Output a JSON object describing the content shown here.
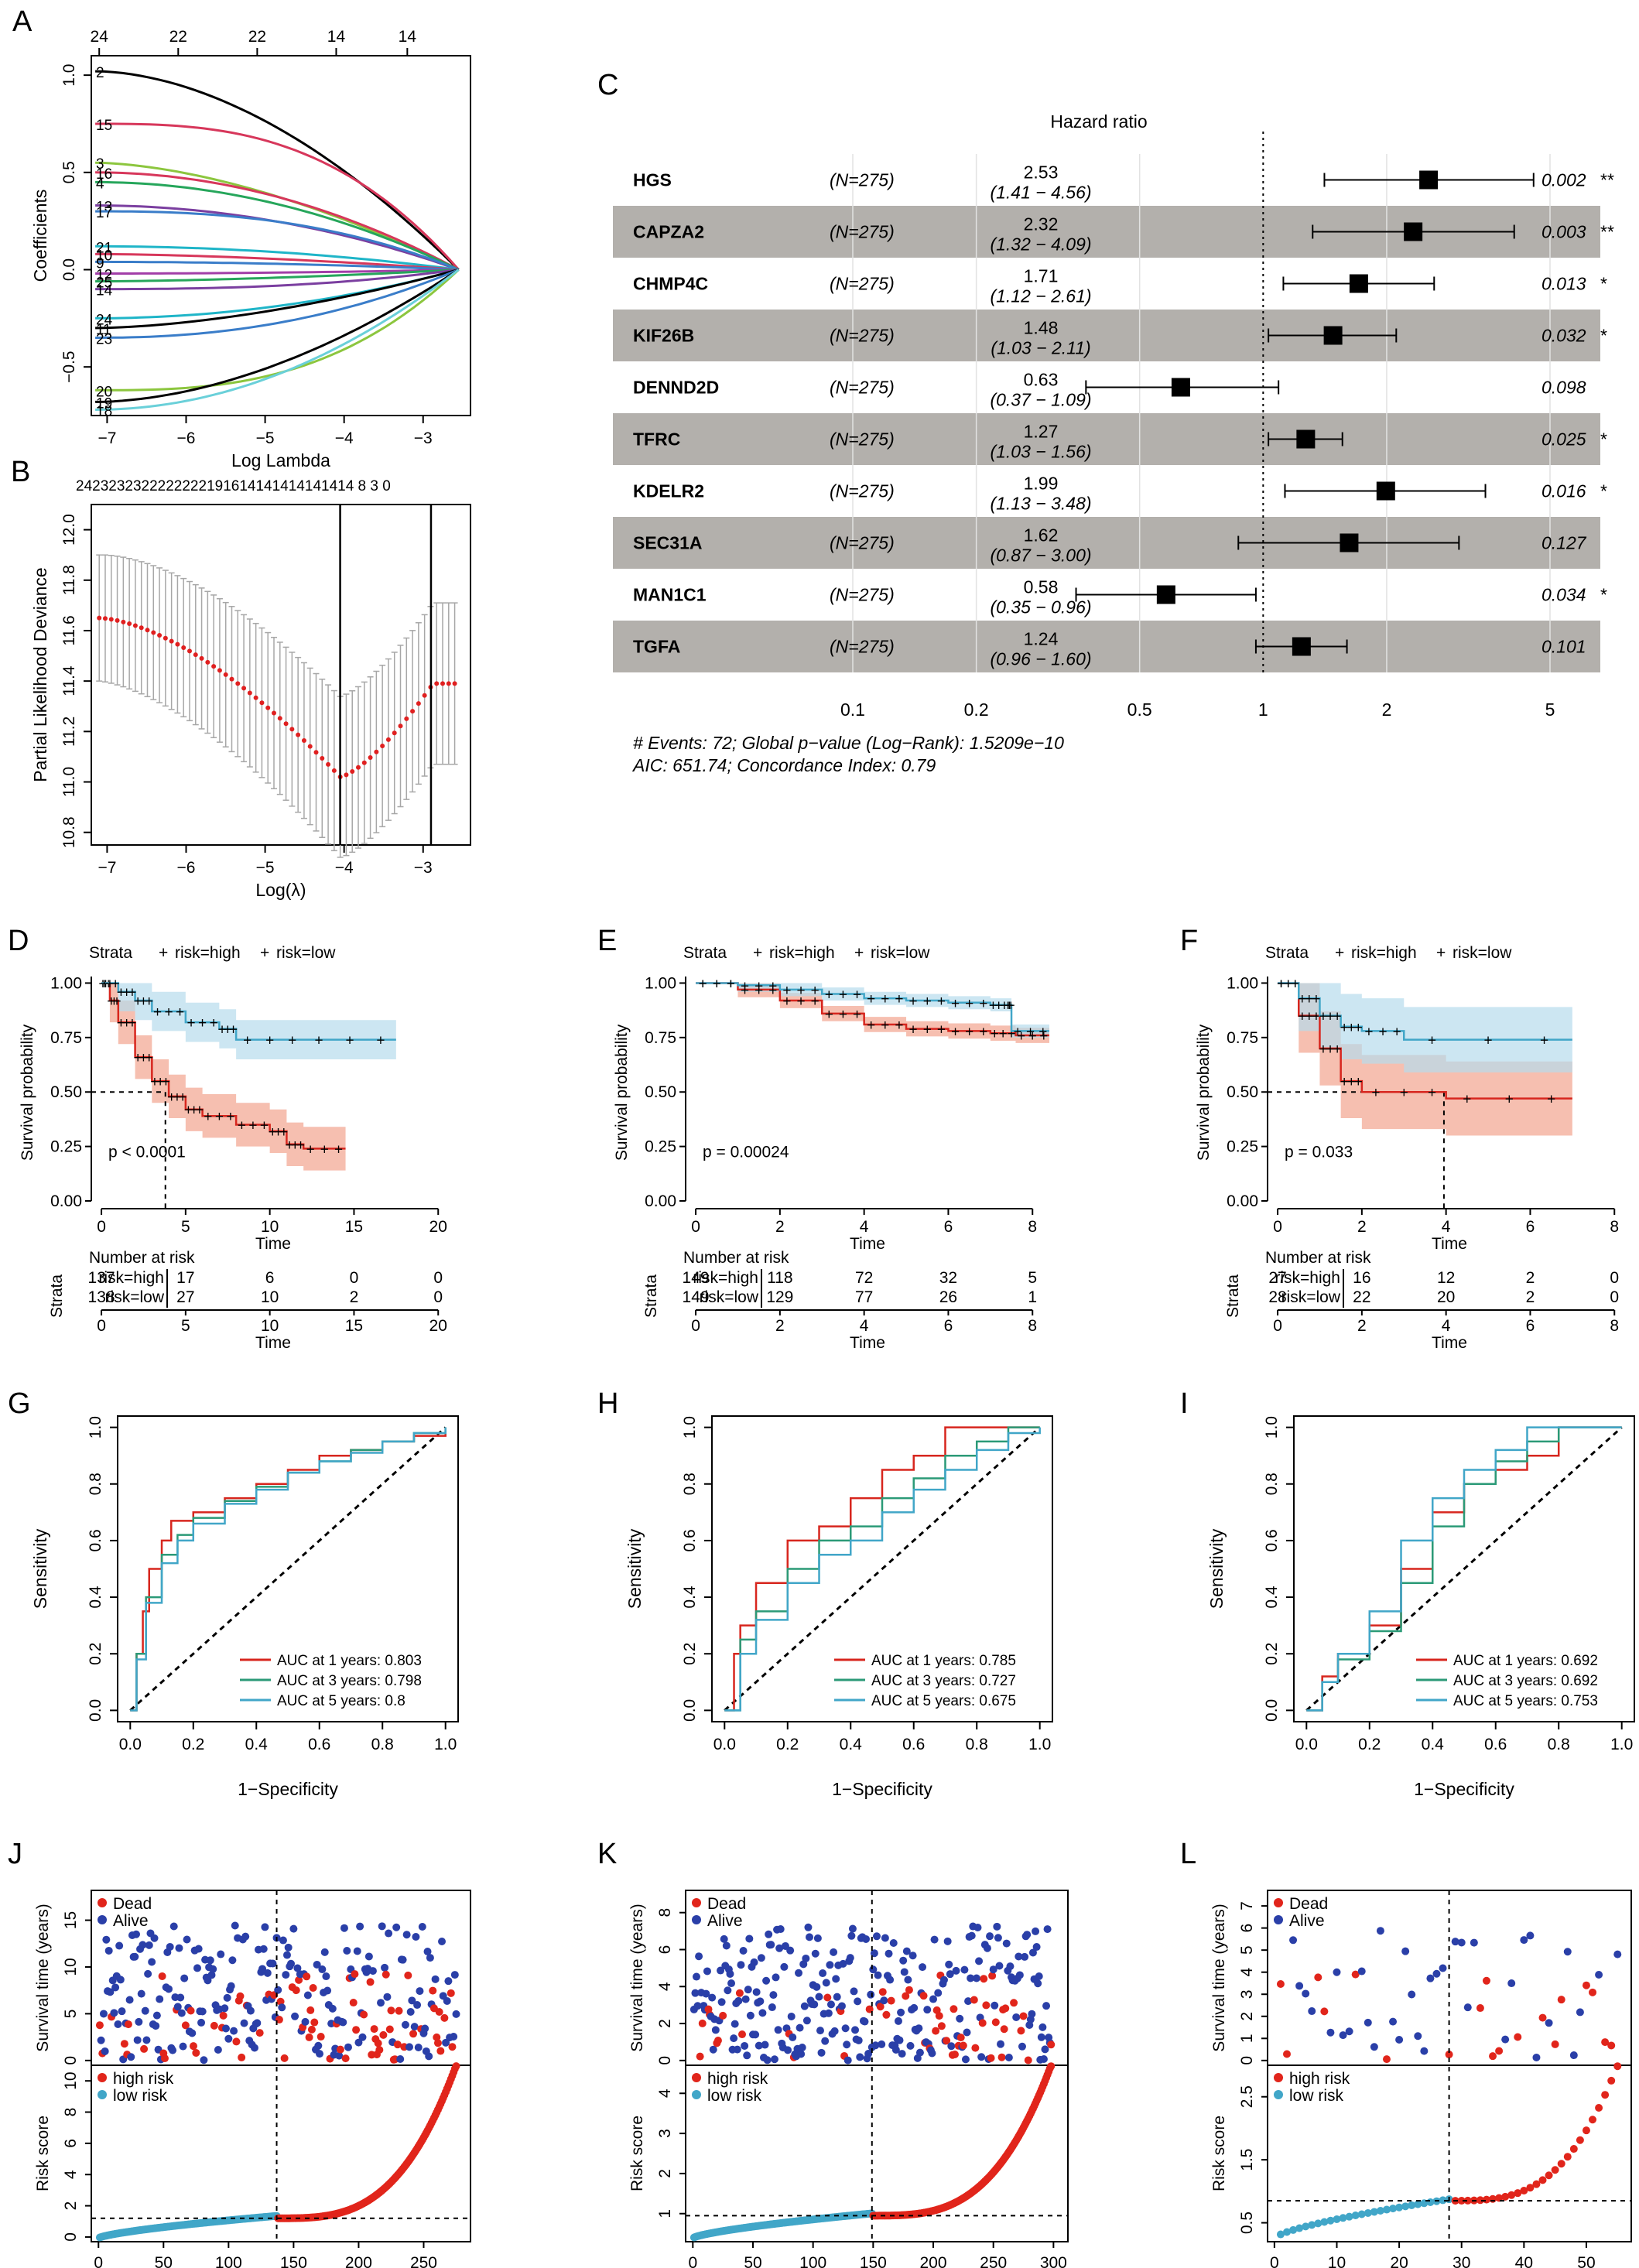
{
  "colors": {
    "red": "#d7261e",
    "blue": "#41a6c8",
    "green": "#2b9a77",
    "red_ci": "#f2a48e",
    "blue_ci": "#b7dcec",
    "dead": "#e1251b",
    "alive": "#2a3fa8",
    "gray_band": "#b3b0ac",
    "gray_err": "#a7a7a7"
  },
  "panels": {
    "A": {
      "letter": "A",
      "x_ticks": [
        "−7",
        "−6",
        "−5",
        "−4",
        "−3"
      ],
      "top_ticks": [
        "24",
        "22",
        "22",
        "14",
        "14"
      ],
      "y_ticks": [
        "−0.5",
        "0.0",
        "0.5",
        "1.0"
      ],
      "xlabel": "Log Lambda",
      "ylabel": "Coefficients",
      "line_labels": [
        "2",
        "15",
        "3",
        "16",
        "4",
        "13",
        "17",
        "21",
        "10",
        "9",
        "12",
        "25",
        "14",
        "24",
        "11",
        "23",
        "20",
        "19",
        "18"
      ]
    },
    "B": {
      "letter": "B",
      "top_numbers": "2423232322222222191614141414141414 8 3 0",
      "x_ticks": [
        "−7",
        "−6",
        "−5",
        "−4",
        "−3"
      ],
      "y_ticks": [
        "10.8",
        "11.0",
        "11.2",
        "11.4",
        "11.6",
        "11.8",
        "12.0"
      ],
      "xlabel": "Log(λ)",
      "ylabel": "Partial Likelihood Deviance"
    },
    "C": {
      "letter": "C",
      "title": "Hazard ratio",
      "rows": [
        {
          "gene": "HGS",
          "n": "(N=275)",
          "hr": "2.53",
          "ci": "(1.41 − 4.56)",
          "p": "0.002",
          "sig": "**"
        },
        {
          "gene": "CAPZA2",
          "n": "(N=275)",
          "hr": "2.32",
          "ci": "(1.32 − 4.09)",
          "p": "0.003",
          "sig": "**"
        },
        {
          "gene": "CHMP4C",
          "n": "(N=275)",
          "hr": "1.71",
          "ci": "(1.12 − 2.61)",
          "p": "0.013",
          "sig": "*"
        },
        {
          "gene": "KIF26B",
          "n": "(N=275)",
          "hr": "1.48",
          "ci": "(1.03 − 2.11)",
          "p": "0.032",
          "sig": "*"
        },
        {
          "gene": "DENND2D",
          "n": "(N=275)",
          "hr": "0.63",
          "ci": "(0.37 − 1.09)",
          "p": "0.098",
          "sig": ""
        },
        {
          "gene": "TFRC",
          "n": "(N=275)",
          "hr": "1.27",
          "ci": "(1.03 − 1.56)",
          "p": "0.025",
          "sig": "*"
        },
        {
          "gene": "KDELR2",
          "n": "(N=275)",
          "hr": "1.99",
          "ci": "(1.13 − 3.48)",
          "p": "0.016",
          "sig": "*"
        },
        {
          "gene": "SEC31A",
          "n": "(N=275)",
          "hr": "1.62",
          "ci": "(0.87 − 3.00)",
          "p": "0.127",
          "sig": ""
        },
        {
          "gene": "MAN1C1",
          "n": "(N=275)",
          "hr": "0.58",
          "ci": "(0.35 − 0.96)",
          "p": "0.034",
          "sig": "*"
        },
        {
          "gene": "TGFA",
          "n": "(N=275)",
          "hr": "1.24",
          "ci": "(0.96 − 1.60)",
          "p": "0.101",
          "sig": ""
        }
      ],
      "x_ticks": [
        "0.1",
        "0.2",
        "0.5",
        "1",
        "2",
        "5"
      ],
      "footer1": "# Events: 72; Global p−value (Log−Rank): 1.5209e−10",
      "footer2": "AIC: 651.74; Concordance Index: 0.79"
    },
    "D": {
      "letter": "D",
      "pvalue": "p < 0.0001",
      "x_ticks": [
        "0",
        "5",
        "10",
        "15",
        "20"
      ],
      "risk_high": [
        "137",
        "17",
        "6",
        "0",
        "0"
      ],
      "risk_low": [
        "138",
        "27",
        "10",
        "2",
        "0"
      ]
    },
    "E": {
      "letter": "E",
      "pvalue": "p = 0.00024",
      "x_ticks": [
        "0",
        "2",
        "4",
        "6",
        "8"
      ],
      "risk_high": [
        "149",
        "118",
        "72",
        "32",
        "5"
      ],
      "risk_low": [
        "149",
        "129",
        "77",
        "26",
        "1"
      ]
    },
    "F": {
      "letter": "F",
      "pvalue": "p = 0.033",
      "x_ticks": [
        "0",
        "2",
        "4",
        "6",
        "8"
      ],
      "risk_high": [
        "27",
        "16",
        "12",
        "2",
        "0"
      ],
      "risk_low": [
        "28",
        "22",
        "20",
        "2",
        "0"
      ]
    },
    "G": {
      "letter": "G",
      "auc": [
        "AUC at 1 years: 0.803",
        "AUC at 3 years: 0.798",
        "AUC at 5 years: 0.8"
      ]
    },
    "H": {
      "letter": "H",
      "auc": [
        "AUC at 1 years: 0.785",
        "AUC at 3 years: 0.727",
        "AUC at 5 years: 0.675"
      ]
    },
    "I": {
      "letter": "I",
      "auc": [
        "AUC at 1 years: 0.692",
        "AUC at 3 years: 0.692",
        "AUC at 5 years: 0.753"
      ]
    },
    "J": {
      "letter": "J",
      "top_y_ticks": [
        "0",
        "5",
        "10",
        "15"
      ],
      "bot_y_ticks": [
        "0",
        "2",
        "4",
        "6",
        "8",
        "10"
      ],
      "x_ticks": [
        "0",
        "50",
        "100",
        "150",
        "200",
        "250"
      ]
    },
    "K": {
      "letter": "K",
      "top_y_ticks": [
        "0",
        "2",
        "4",
        "6",
        "8"
      ],
      "bot_y_ticks": [
        "1",
        "2",
        "3",
        "4"
      ],
      "x_ticks": [
        "0",
        "50",
        "100",
        "150",
        "200",
        "250",
        "300"
      ]
    },
    "L": {
      "letter": "L",
      "top_y_ticks": [
        "0",
        "1",
        "2",
        "3",
        "4",
        "5",
        "6",
        "7"
      ],
      "bot_y_ticks": [
        "0.5",
        "1.5",
        "2.5"
      ],
      "x_ticks": [
        "0",
        "10",
        "20",
        "30",
        "40",
        "50"
      ]
    }
  },
  "labels": {
    "strata": "Strata",
    "risk_high": "risk=high",
    "risk_low": "risk=low",
    "survival_probability": "Survival probability",
    "time": "Time",
    "number_at_risk": "Number at risk",
    "sensitivity": "Sensitivity",
    "specificity": "1−Specificity",
    "survival_time": "Survival time (years)",
    "risk_score": "Risk score",
    "dead": "Dead",
    "alive": "Alive",
    "high_risk": "high risk",
    "low_risk": "low risk",
    "km_y_ticks": [
      "0.00",
      "0.25",
      "0.50",
      "0.75",
      "1.00"
    ],
    "roc_ticks": [
      "0.0",
      "0.2",
      "0.4",
      "0.6",
      "0.8",
      "1.0"
    ]
  },
  "chart_data": [
    {
      "panel": "C",
      "type": "forest",
      "title": "Hazard ratio",
      "categories": [
        "HGS",
        "CAPZA2",
        "CHMP4C",
        "KIF26B",
        "DENND2D",
        "TFRC",
        "KDELR2",
        "SEC31A",
        "MAN1C1",
        "TGFA"
      ],
      "values": [
        2.53,
        2.32,
        1.71,
        1.48,
        0.63,
        1.27,
        1.99,
        1.62,
        0.58,
        1.24
      ],
      "lower": [
        1.41,
        1.32,
        1.12,
        1.03,
        0.37,
        1.03,
        1.13,
        0.87,
        0.35,
        0.96
      ],
      "upper": [
        4.56,
        4.09,
        2.61,
        2.11,
        1.09,
        1.56,
        3.48,
        3.0,
        0.96,
        1.6
      ],
      "xscale": "log",
      "xlim": [
        0.1,
        5
      ]
    },
    {
      "panel": "D",
      "type": "line",
      "xlabel": "Time",
      "ylabel": "Survival probability",
      "xlim": [
        0,
        20
      ],
      "ylim": [
        0,
        1
      ],
      "series": [
        {
          "name": "risk=high",
          "x": [
            0,
            0.5,
            1,
            2,
            3,
            4,
            5,
            6,
            8,
            10,
            11,
            12,
            14.5
          ],
          "values": [
            1,
            0.92,
            0.82,
            0.66,
            0.55,
            0.48,
            0.42,
            0.39,
            0.35,
            0.32,
            0.26,
            0.24,
            0.24
          ]
        },
        {
          "name": "risk=low",
          "x": [
            0,
            1,
            2,
            3,
            5,
            7,
            8,
            12,
            17.5
          ],
          "values": [
            1,
            0.96,
            0.92,
            0.87,
            0.82,
            0.79,
            0.74,
            0.74,
            0.74
          ]
        }
      ]
    },
    {
      "panel": "E",
      "type": "line",
      "xlabel": "Time",
      "ylabel": "Survival probability",
      "xlim": [
        0,
        8
      ],
      "ylim": [
        0,
        1
      ],
      "series": [
        {
          "name": "risk=high",
          "x": [
            0,
            1,
            2,
            3,
            4,
            5,
            6,
            7,
            7.6,
            8.4
          ],
          "values": [
            1,
            0.97,
            0.92,
            0.86,
            0.81,
            0.79,
            0.78,
            0.77,
            0.76,
            0.76
          ]
        },
        {
          "name": "risk=low",
          "x": [
            0,
            1,
            2,
            3,
            4,
            5,
            6,
            7,
            7.4,
            7.5,
            8.4
          ],
          "values": [
            1,
            0.99,
            0.97,
            0.95,
            0.93,
            0.92,
            0.91,
            0.9,
            0.9,
            0.78,
            0.78
          ]
        }
      ]
    },
    {
      "panel": "F",
      "type": "line",
      "xlabel": "Time",
      "ylabel": "Survival probability",
      "xlim": [
        0,
        8
      ],
      "ylim": [
        0,
        1
      ],
      "series": [
        {
          "name": "risk=high",
          "x": [
            0,
            0.5,
            1,
            1.5,
            2,
            4,
            7
          ],
          "values": [
            1,
            0.85,
            0.7,
            0.55,
            0.5,
            0.47,
            0.47
          ]
        },
        {
          "name": "risk=low",
          "x": [
            0,
            0.5,
            1,
            1.5,
            2,
            3,
            7
          ],
          "values": [
            1,
            0.93,
            0.85,
            0.8,
            0.78,
            0.74,
            0.74
          ]
        }
      ]
    },
    {
      "panel": "G",
      "type": "line",
      "xlabel": "1−Specificity",
      "ylabel": "Sensitivity",
      "xlim": [
        0,
        1
      ],
      "ylim": [
        0,
        1
      ],
      "series": [
        {
          "name": "AUC at 1 years: 0.803",
          "x": [
            0,
            0.02,
            0.04,
            0.06,
            0.1,
            0.13,
            0.2,
            0.3,
            0.4,
            0.5,
            0.6,
            0.7,
            0.8,
            0.9,
            1
          ],
          "values": [
            0,
            0.2,
            0.35,
            0.5,
            0.6,
            0.67,
            0.7,
            0.75,
            0.8,
            0.85,
            0.9,
            0.92,
            0.95,
            0.97,
            1
          ]
        },
        {
          "name": "AUC at 3 years: 0.798",
          "x": [
            0,
            0.02,
            0.05,
            0.1,
            0.15,
            0.2,
            0.3,
            0.4,
            0.5,
            0.6,
            0.7,
            0.8,
            0.9,
            1
          ],
          "values": [
            0,
            0.2,
            0.4,
            0.55,
            0.62,
            0.68,
            0.74,
            0.79,
            0.84,
            0.88,
            0.92,
            0.95,
            0.98,
            1
          ]
        },
        {
          "name": "AUC at 5 years: 0.8",
          "x": [
            0,
            0.02,
            0.05,
            0.1,
            0.15,
            0.2,
            0.3,
            0.4,
            0.5,
            0.6,
            0.7,
            0.8,
            0.9,
            1
          ],
          "values": [
            0,
            0.18,
            0.38,
            0.52,
            0.6,
            0.66,
            0.73,
            0.78,
            0.84,
            0.88,
            0.91,
            0.95,
            0.98,
            1
          ]
        }
      ]
    },
    {
      "panel": "H",
      "type": "line",
      "xlabel": "1−Specificity",
      "ylabel": "Sensitivity",
      "xlim": [
        0,
        1
      ],
      "ylim": [
        0,
        1
      ],
      "series": [
        {
          "name": "AUC at 1 years: 0.785",
          "x": [
            0,
            0.03,
            0.05,
            0.1,
            0.2,
            0.3,
            0.4,
            0.5,
            0.6,
            0.7,
            0.8,
            1
          ],
          "values": [
            0,
            0.2,
            0.3,
            0.45,
            0.6,
            0.65,
            0.75,
            0.85,
            0.9,
            1,
            1,
            1
          ]
        },
        {
          "name": "AUC at 3 years: 0.727",
          "x": [
            0,
            0.05,
            0.1,
            0.2,
            0.3,
            0.4,
            0.5,
            0.6,
            0.7,
            0.8,
            0.9,
            1
          ],
          "values": [
            0,
            0.25,
            0.35,
            0.5,
            0.6,
            0.65,
            0.75,
            0.82,
            0.9,
            0.95,
            1,
            1
          ]
        },
        {
          "name": "AUC at 5 years: 0.675",
          "x": [
            0,
            0.05,
            0.1,
            0.2,
            0.3,
            0.4,
            0.5,
            0.6,
            0.7,
            0.8,
            0.9,
            1
          ],
          "values": [
            0,
            0.2,
            0.32,
            0.45,
            0.55,
            0.6,
            0.7,
            0.78,
            0.85,
            0.92,
            0.98,
            1
          ]
        }
      ]
    },
    {
      "panel": "I",
      "type": "line",
      "xlabel": "1−Specificity",
      "ylabel": "Sensitivity",
      "xlim": [
        0,
        1
      ],
      "ylim": [
        0,
        1
      ],
      "series": [
        {
          "name": "AUC at 1 years: 0.692",
          "x": [
            0,
            0.05,
            0.1,
            0.2,
            0.3,
            0.4,
            0.5,
            0.6,
            0.7,
            0.8,
            1
          ],
          "values": [
            0,
            0.12,
            0.2,
            0.3,
            0.5,
            0.7,
            0.8,
            0.85,
            0.9,
            1,
            1
          ]
        },
        {
          "name": "AUC at 3 years: 0.692",
          "x": [
            0,
            0.05,
            0.1,
            0.2,
            0.3,
            0.4,
            0.5,
            0.6,
            0.7,
            0.8,
            1
          ],
          "values": [
            0,
            0.1,
            0.18,
            0.28,
            0.45,
            0.65,
            0.8,
            0.88,
            0.95,
            1,
            1
          ]
        },
        {
          "name": "AUC at 5 years: 0.753",
          "x": [
            0,
            0.05,
            0.1,
            0.2,
            0.3,
            0.4,
            0.5,
            0.6,
            0.7,
            0.8,
            1
          ],
          "values": [
            0,
            0.1,
            0.2,
            0.35,
            0.6,
            0.75,
            0.85,
            0.92,
            1,
            1,
            1
          ]
        }
      ]
    }
  ]
}
